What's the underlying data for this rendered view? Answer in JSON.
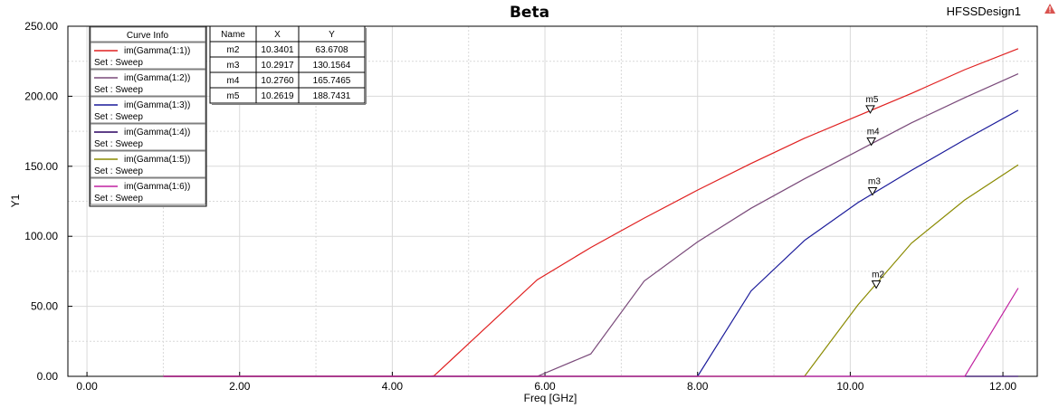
{
  "header": {
    "title": "Beta",
    "design_name": "HFSSDesign1"
  },
  "colors": {
    "background": "#ffffff",
    "grid": "#d9d9d9",
    "axis": "#000000",
    "warning_icon": "#d9534f"
  },
  "icons": {
    "warning": "warning-triangle-icon",
    "marker": "marker-triangle-icon"
  },
  "legend": {
    "title": "Curve Info",
    "set_label": "Set : Sweep"
  },
  "marker_table": {
    "headers": [
      "Name",
      "X",
      "Y"
    ],
    "rows": [
      [
        "m2",
        "10.3401",
        "63.6708"
      ],
      [
        "m3",
        "10.2917",
        "130.1564"
      ],
      [
        "m4",
        "10.2760",
        "165.7465"
      ],
      [
        "m5",
        "10.2619",
        "188.7431"
      ]
    ]
  },
  "chart_data": {
    "type": "line",
    "title": "Beta",
    "xlabel": "Freq [GHz]",
    "ylabel": "Y1",
    "xlim": [
      -0.25,
      12.45
    ],
    "ylim": [
      0,
      250
    ],
    "xticks": [
      0,
      2,
      4,
      6,
      8,
      10,
      12
    ],
    "xtick_labels": [
      "0.00",
      "2.00",
      "4.00",
      "6.00",
      "8.00",
      "10.00",
      "12.00"
    ],
    "yticks": [
      0,
      50,
      100,
      150,
      200,
      250
    ],
    "ytick_labels": [
      "0.00",
      "50.00",
      "100.00",
      "150.00",
      "200.00",
      "250.00"
    ],
    "grid": true,
    "legend_position": "top-left",
    "series": [
      {
        "name": "im(Gamma(1:1))",
        "color": "#e02020",
        "x": [
          1.0,
          4.5,
          4.55,
          5.9,
          6.6,
          7.3,
          8.0,
          8.7,
          9.4,
          10.1,
          10.8,
          11.5,
          12.2
        ],
        "y": [
          0,
          0,
          0.5,
          69,
          92,
          113,
          133,
          152,
          170,
          186,
          202,
          219,
          234
        ]
      },
      {
        "name": "im(Gamma(1:2))",
        "color": "#7a4a7a",
        "x": [
          1.0,
          5.9,
          6.6,
          7.3,
          8.0,
          8.7,
          9.4,
          10.1,
          10.8,
          11.5,
          12.2
        ],
        "y": [
          0,
          0,
          16,
          68,
          96,
          120,
          141,
          161,
          181,
          199,
          216
        ]
      },
      {
        "name": "im(Gamma(1:3))",
        "color": "#1a1a9a",
        "x": [
          1.0,
          8.0,
          8.7,
          9.4,
          10.1,
          10.8,
          11.5,
          12.2
        ],
        "y": [
          0,
          0,
          61,
          97,
          124,
          147,
          169,
          190
        ]
      },
      {
        "name": "im(Gamma(1:4))",
        "color": "#2a0060",
        "x": [
          1.0,
          12.2
        ],
        "y": [
          0,
          0
        ]
      },
      {
        "name": "im(Gamma(1:5))",
        "color": "#8a8a00",
        "x": [
          1.0,
          9.4,
          10.1,
          10.8,
          11.5,
          12.2
        ],
        "y": [
          0,
          0,
          51,
          95,
          126,
          151
        ]
      },
      {
        "name": "im(Gamma(1:6))",
        "color": "#c020a0",
        "x": [
          1.0,
          11.5,
          12.2
        ],
        "y": [
          0,
          0,
          63
        ]
      }
    ],
    "markers": [
      {
        "name": "m5",
        "x": 10.2619,
        "y": 188.7431
      },
      {
        "name": "m4",
        "x": 10.276,
        "y": 165.7465
      },
      {
        "name": "m3",
        "x": 10.2917,
        "y": 130.1564
      },
      {
        "name": "m2",
        "x": 10.3401,
        "y": 63.6708
      }
    ]
  }
}
